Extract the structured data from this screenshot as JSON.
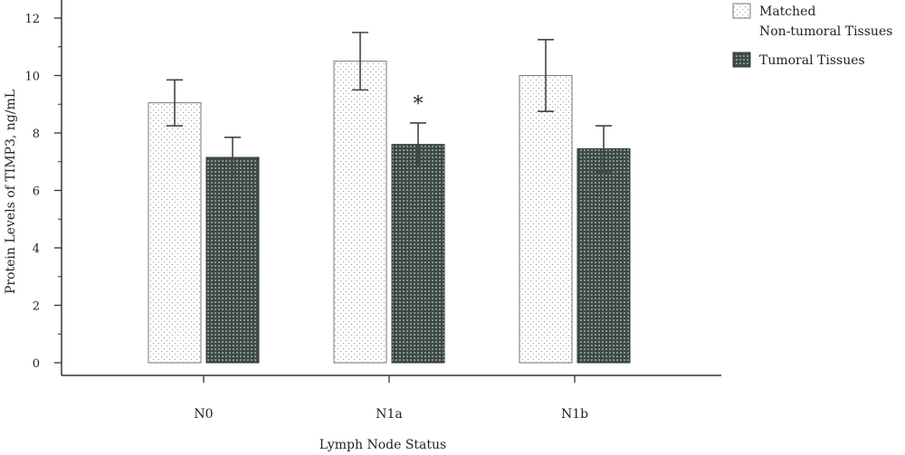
{
  "chart_data": {
    "type": "bar",
    "title": "",
    "xlabel": "Lymph Node Status",
    "ylabel": "Protein Levels of TIMP3, ng/mL",
    "ylim": [
      0,
      12
    ],
    "yticks": [
      0,
      2,
      4,
      6,
      8,
      10,
      12
    ],
    "categories": [
      "N0",
      "N1a",
      "N1b"
    ],
    "series": [
      {
        "name": "Matched Non-tumoral Tissues",
        "legend_lines": [
          "Matched",
          "Non-tumoral Tissues"
        ],
        "values": [
          9.05,
          10.5,
          10.0
        ],
        "errors": [
          0.8,
          1.0,
          1.25
        ],
        "fill": "#ffffff",
        "pattern": "sparse-dots"
      },
      {
        "name": "Tumoral Tissues",
        "legend_lines": [
          "Tumoral Tissues"
        ],
        "values": [
          7.15,
          7.6,
          7.45
        ],
        "errors": [
          0.7,
          0.75,
          0.8
        ],
        "fill": "#3c4a45",
        "pattern": "dense-dots"
      }
    ],
    "annotations": [
      {
        "text": "*",
        "category": "N1a",
        "series": 1
      }
    ],
    "grid": false,
    "legend_position": "top-right"
  }
}
